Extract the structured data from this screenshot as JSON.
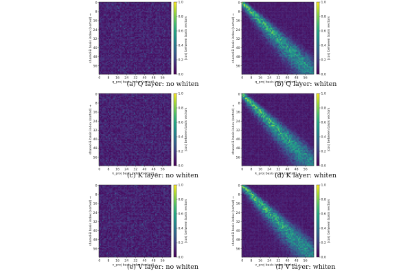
{
  "chart_data": [
    {
      "type": "heatmap",
      "caption": "(a) Q layer: no whiten",
      "xlabel": "q_proj basis index (sorted) →",
      "ylabel": "shared-B basis index (sorted) →",
      "colorbar_label": "|cos| between basis vectors",
      "xticks": [
        0,
        8,
        16,
        24,
        32,
        40,
        48,
        56
      ],
      "yticks": [
        0,
        8,
        16,
        24,
        32,
        40,
        48,
        56
      ],
      "cbar_ticks": [
        "0.0",
        "0.2",
        "0.4",
        "0.6",
        "0.8",
        "1.0"
      ],
      "clim": [
        0.0,
        1.0
      ],
      "colormap": "viridis",
      "pattern": "uniform-low",
      "grid": false
    },
    {
      "type": "heatmap",
      "caption": "(b) Q layer: whiten",
      "xlabel": "q_proj basis index (sorted) →",
      "ylabel": "shared-B basis index (sorted) →",
      "colorbar_label": "|cos| between basis vectors",
      "xticks": [
        0,
        8,
        16,
        24,
        32,
        40,
        48,
        56
      ],
      "yticks": [
        0,
        8,
        16,
        24,
        32,
        40,
        48,
        56
      ],
      "cbar_ticks": [
        "0.0",
        "0.2",
        "0.4",
        "0.6",
        "0.8",
        "1.0"
      ],
      "clim": [
        0.0,
        1.0
      ],
      "colormap": "viridis",
      "pattern": "diagonal",
      "grid": false
    },
    {
      "type": "heatmap",
      "caption": "(c) K layer: no whiten",
      "xlabel": "k_proj basis index (sorted) →",
      "ylabel": "shared-B basis index (sorted) →",
      "colorbar_label": "|cos| between basis vectors",
      "xticks": [
        0,
        8,
        16,
        24,
        32,
        40,
        48,
        56
      ],
      "yticks": [
        0,
        8,
        16,
        24,
        32,
        40,
        48,
        56
      ],
      "cbar_ticks": [
        "0.0",
        "0.2",
        "0.4",
        "0.6",
        "0.8",
        "1.0"
      ],
      "clim": [
        0.0,
        1.0
      ],
      "colormap": "viridis",
      "pattern": "uniform-low",
      "grid": false
    },
    {
      "type": "heatmap",
      "caption": "(d) K layer: whiten",
      "xlabel": "k_proj basis index (sorted) →",
      "ylabel": "shared-B basis index (sorted) →",
      "colorbar_label": "|cos| between basis vectors",
      "xticks": [
        0,
        8,
        16,
        24,
        32,
        40,
        48,
        56
      ],
      "yticks": [
        0,
        8,
        16,
        24,
        32,
        40,
        48,
        56
      ],
      "cbar_ticks": [
        "0.0",
        "0.2",
        "0.4",
        "0.6",
        "0.8",
        "1.0"
      ],
      "clim": [
        0.0,
        1.0
      ],
      "colormap": "viridis",
      "pattern": "diagonal",
      "grid": false
    },
    {
      "type": "heatmap",
      "caption": "(e) V layer: no whiten",
      "xlabel": "v_proj basis index (sorted) →",
      "ylabel": "shared-B basis index (sorted) →",
      "colorbar_label": "|cos| between basis vectors",
      "xticks": [
        0,
        8,
        16,
        24,
        32,
        40,
        48,
        56
      ],
      "yticks": [
        0,
        8,
        16,
        24,
        32,
        40,
        48,
        56
      ],
      "cbar_ticks": [
        "0.0",
        "0.2",
        "0.4",
        "0.6",
        "0.8",
        "1.0"
      ],
      "clim": [
        0.0,
        1.0
      ],
      "colormap": "viridis",
      "pattern": "uniform-low",
      "grid": false
    },
    {
      "type": "heatmap",
      "caption": "(f) V layer: whiten",
      "xlabel": "v_proj basis index (sorted) →",
      "ylabel": "shared-B basis index (sorted) →",
      "colorbar_label": "|cos| between basis vectors",
      "xticks": [
        0,
        8,
        16,
        24,
        32,
        40,
        48,
        56
      ],
      "yticks": [
        0,
        8,
        16,
        24,
        32,
        40,
        48,
        56
      ],
      "cbar_ticks": [
        "0.0",
        "0.2",
        "0.4",
        "0.6",
        "0.8",
        "1.0"
      ],
      "clim": [
        0.0,
        1.0
      ],
      "colormap": "viridis",
      "pattern": "diagonal",
      "grid": false
    }
  ]
}
